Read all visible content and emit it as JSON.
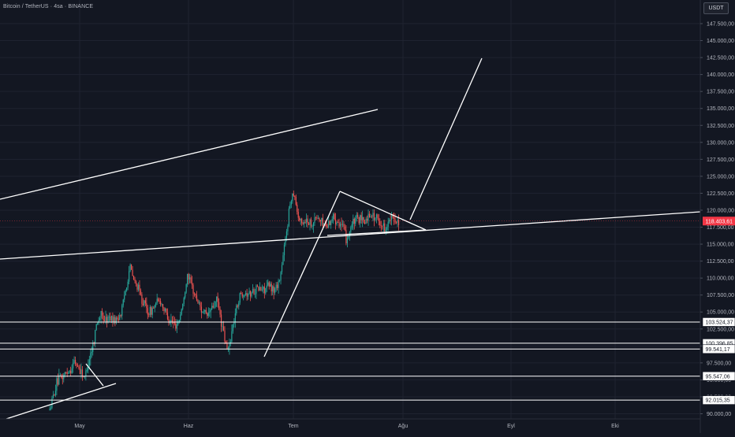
{
  "header": {
    "symbol": "Bitcoin / TetherUS · 4sa · BINANCE",
    "currency_button": "USDT"
  },
  "colors": {
    "background": "#131722",
    "grid": "#1f2330",
    "up": "#26a69a",
    "down": "#ef5350",
    "drawing": "#ffffff",
    "axis_text": "#b2b5be",
    "last_price_bg": "#f23645"
  },
  "chart_data": {
    "type": "candlestick",
    "x_ticks": [
      "May",
      "Haz",
      "Tem",
      "Ağu",
      "Eyl",
      "Eki"
    ],
    "y_ticks": [
      "147.500,00",
      "145.000,00",
      "142.500,00",
      "140.000,00",
      "137.500,00",
      "135.000,00",
      "132.500,00",
      "130.000,00",
      "127.500,00",
      "125.000,00",
      "122.500,00",
      "120.000,00",
      "117.500,00",
      "115.000,00",
      "112.500,00",
      "110.000,00",
      "107.500,00",
      "105.000,00",
      "102.500,00",
      "100.000,00",
      "97.500,00",
      "95.000,00",
      "92.500,00",
      "90.000,00"
    ],
    "ylim": [
      89500,
      149000
    ],
    "last_price": {
      "value": 118403.61,
      "label": "118.403,61"
    },
    "price_path": [
      [
        0.0,
        90500
      ],
      [
        0.01,
        92500
      ],
      [
        0.02,
        94500
      ],
      [
        0.03,
        95000
      ],
      [
        0.045,
        96000
      ],
      [
        0.06,
        96500
      ],
      [
        0.07,
        97700
      ],
      [
        0.08,
        97000
      ],
      [
        0.09,
        96200
      ],
      [
        0.1,
        95200
      ],
      [
        0.11,
        97500
      ],
      [
        0.125,
        100500
      ],
      [
        0.135,
        103500
      ],
      [
        0.145,
        104500
      ],
      [
        0.16,
        103800
      ],
      [
        0.175,
        104300
      ],
      [
        0.19,
        103700
      ],
      [
        0.205,
        105000
      ],
      [
        0.22,
        109000
      ],
      [
        0.23,
        111800
      ],
      [
        0.24,
        109800
      ],
      [
        0.255,
        108200
      ],
      [
        0.27,
        106200
      ],
      [
        0.285,
        104800
      ],
      [
        0.3,
        105800
      ],
      [
        0.315,
        106800
      ],
      [
        0.33,
        105200
      ],
      [
        0.345,
        103800
      ],
      [
        0.36,
        103000
      ],
      [
        0.37,
        103700
      ],
      [
        0.385,
        107000
      ],
      [
        0.395,
        110800
      ],
      [
        0.405,
        109000
      ],
      [
        0.42,
        107000
      ],
      [
        0.435,
        105400
      ],
      [
        0.45,
        104300
      ],
      [
        0.465,
        105600
      ],
      [
        0.48,
        106700
      ],
      [
        0.49,
        104000
      ],
      [
        0.5,
        101200
      ],
      [
        0.51,
        99200
      ],
      [
        0.52,
        101500
      ],
      [
        0.53,
        104500
      ],
      [
        0.545,
        107500
      ],
      [
        0.56,
        108000
      ],
      [
        0.575,
        107700
      ],
      [
        0.59,
        108500
      ],
      [
        0.61,
        108300
      ],
      [
        0.63,
        108800
      ],
      [
        0.645,
        108200
      ],
      [
        0.66,
        110000
      ],
      [
        0.67,
        113500
      ],
      [
        0.68,
        117500
      ],
      [
        0.69,
        121500
      ],
      [
        0.7,
        123000
      ],
      [
        0.71,
        119500
      ],
      [
        0.72,
        118000
      ],
      [
        0.735,
        118600
      ],
      [
        0.75,
        118000
      ],
      [
        0.765,
        119000
      ],
      [
        0.78,
        118200
      ],
      [
        0.795,
        117700
      ],
      [
        0.81,
        119000
      ],
      [
        0.825,
        118500
      ],
      [
        0.84,
        117500
      ],
      [
        0.85,
        115600
      ],
      [
        0.865,
        117800
      ],
      [
        0.88,
        118800
      ],
      [
        0.9,
        118200
      ],
      [
        0.92,
        119500
      ],
      [
        0.94,
        118600
      ],
      [
        0.96,
        117400
      ],
      [
        0.98,
        118800
      ],
      [
        1.0,
        118400
      ]
    ],
    "horizontal_levels": [
      {
        "value": 103524.37,
        "label": "103.524,37"
      },
      {
        "value": 100396.85,
        "label": "100.396,85"
      },
      {
        "value": 99541.17,
        "label": "99.541,17"
      },
      {
        "value": 95547.06,
        "label": "95.547,06"
      },
      {
        "value": 92015.35,
        "label": "92.015,35"
      }
    ]
  }
}
